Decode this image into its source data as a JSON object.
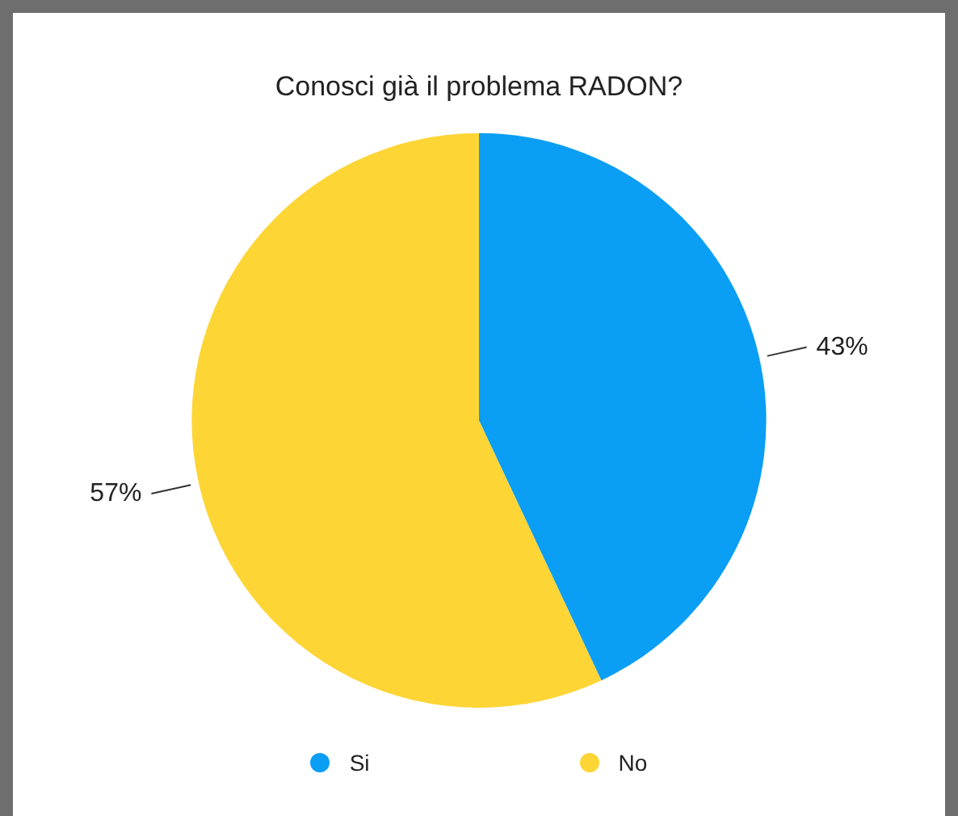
{
  "chart_data": {
    "type": "pie",
    "title": "Conosci già il problema RADON?",
    "categories": [
      "Si",
      "No"
    ],
    "values": [
      43,
      57
    ],
    "colors": [
      "#0a9ef5",
      "#fdd535"
    ],
    "value_labels": [
      "43%",
      "57%"
    ],
    "legend": "bottom"
  }
}
